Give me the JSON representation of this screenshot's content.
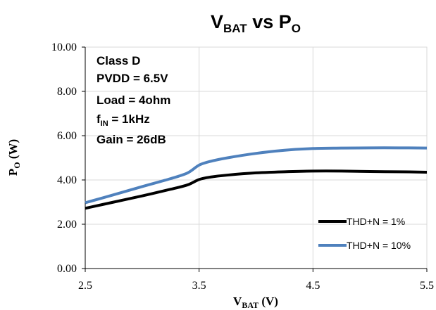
{
  "chart_data": {
    "type": "line",
    "title": {
      "main": "V",
      "main_sub": "BAT",
      "mid": " vs P",
      "mid_sub": "O"
    },
    "xlabel": {
      "main": "V",
      "sub": "BAT",
      "unit": " (V)"
    },
    "ylabel": {
      "main": "P",
      "sub": "O",
      "unit": " (W)"
    },
    "xlim": [
      2.5,
      5.5
    ],
    "ylim": [
      0,
      10
    ],
    "x_ticks": [
      "2.5",
      "3.5",
      "4.5",
      "5.5"
    ],
    "x_tick_values": [
      2.5,
      3.5,
      4.5,
      5.5
    ],
    "y_ticks": [
      "0.00",
      "2.00",
      "4.00",
      "6.00",
      "8.00",
      "10.00"
    ],
    "y_tick_values": [
      0,
      2,
      4,
      6,
      8,
      10
    ],
    "grid": true,
    "annotation": {
      "line1": "Class D",
      "line2": "PVDD = 6.5V",
      "line3": "Load = 4ohm",
      "line4_main": "f",
      "line4_sub": "IN",
      "line4_rest": " = 1kHz",
      "line5": "Gain = 26dB"
    },
    "legend_position": "bottom-right",
    "series": [
      {
        "name": "THD+N = 1%",
        "color": "#000000",
        "x": [
          2.5,
          2.75,
          3.0,
          3.25,
          3.4,
          3.5,
          3.6,
          3.75,
          4.0,
          4.25,
          4.5,
          4.75,
          5.0,
          5.25,
          5.5
        ],
        "values": [
          2.72,
          3.0,
          3.28,
          3.58,
          3.78,
          4.02,
          4.13,
          4.22,
          4.32,
          4.37,
          4.4,
          4.4,
          4.38,
          4.37,
          4.35
        ]
      },
      {
        "name": "THD+N = 10%",
        "color": "#4f81bd",
        "x": [
          2.5,
          2.75,
          3.0,
          3.25,
          3.4,
          3.5,
          3.6,
          3.75,
          4.0,
          4.25,
          4.5,
          4.75,
          5.0,
          5.25,
          5.5
        ],
        "values": [
          2.97,
          3.33,
          3.7,
          4.06,
          4.32,
          4.67,
          4.84,
          5.0,
          5.2,
          5.34,
          5.42,
          5.44,
          5.45,
          5.45,
          5.44
        ]
      }
    ]
  }
}
